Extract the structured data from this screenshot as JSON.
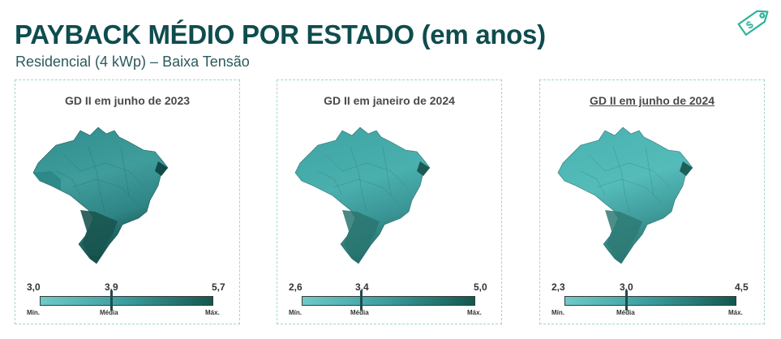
{
  "header": {
    "title": "PAYBACK MÉDIO POR ESTADO (em anos)",
    "subtitle": "Residencial (4 kWp) – Baixa Tensão"
  },
  "icons": {
    "corner": "price-tag-icon",
    "map": "brazil-map"
  },
  "colors": {
    "title": "#0f4c4e",
    "scale_min": "#6fcac8",
    "scale_mid": "#3a9c9c",
    "scale_max": "#14564f",
    "panel_border": "#9fd6cf"
  },
  "legend_labels": {
    "min": "Mín.",
    "mid": "Média",
    "max": "Máx."
  },
  "panels": [
    {
      "title": "GD II em junho de 2023",
      "min": "3,0",
      "avg": "3,9",
      "max": "5,7",
      "avg_fraction": 0.33
    },
    {
      "title": "GD II em janeiro de 2024",
      "min": "2,6",
      "avg": "3,4",
      "max": "5,0",
      "avg_fraction": 0.33
    },
    {
      "title": "GD II em junho de 2024",
      "min": "2,3",
      "avg": "3,0",
      "max": "4,5",
      "avg_fraction": 0.32
    }
  ]
}
